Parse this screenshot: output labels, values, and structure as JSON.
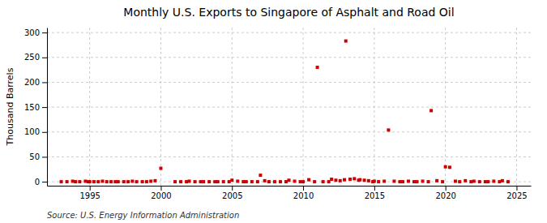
{
  "chart_data": {
    "type": "scatter",
    "title": "Monthly U.S. Exports to Singapore of Asphalt and Road Oil",
    "y_label": "Thousand Barrels",
    "annotations": [
      "Source: U.S. Energy Information Administration"
    ],
    "color": "#cc0000",
    "marker": "square",
    "grid": true,
    "xlim": [
      1992,
      2026
    ],
    "ylim": [
      -8,
      310
    ],
    "xticks": [
      1995,
      2000,
      2005,
      2010,
      2015,
      2020,
      2025
    ],
    "yticks": [
      0,
      50,
      100,
      150,
      200,
      250,
      300
    ],
    "x": [
      1993.0,
      1993.4,
      1993.8,
      1994.0,
      1994.3,
      1994.7,
      1994.9,
      1995.0,
      1995.3,
      1995.6,
      1995.9,
      1996.2,
      1996.5,
      1996.8,
      1997.0,
      1997.4,
      1997.7,
      1998.0,
      1998.3,
      1998.7,
      1999.0,
      1999.3,
      1999.6,
      2000.0,
      2001.0,
      2001.4,
      2001.8,
      2002.0,
      2002.4,
      2002.8,
      2003.0,
      2003.4,
      2003.8,
      2004.0,
      2004.4,
      2004.8,
      2005.0,
      2005.4,
      2005.8,
      2006.0,
      2006.4,
      2006.8,
      2007.0,
      2007.3,
      2007.6,
      2008.0,
      2008.4,
      2008.8,
      2009.0,
      2009.4,
      2009.8,
      2010.0,
      2010.4,
      2010.8,
      2011.0,
      2011.4,
      2011.8,
      2012.0,
      2012.3,
      2012.6,
      2012.9,
      2013.0,
      2013.3,
      2013.6,
      2013.9,
      2014.0,
      2014.3,
      2014.6,
      2014.9,
      2015.0,
      2015.3,
      2015.7,
      2016.0,
      2016.4,
      2016.8,
      2017.0,
      2017.4,
      2017.8,
      2018.0,
      2018.4,
      2018.8,
      2019.0,
      2019.4,
      2019.8,
      2020.0,
      2020.3,
      2020.7,
      2021.0,
      2021.4,
      2021.8,
      2022.0,
      2022.4,
      2022.8,
      2023.0,
      2023.4,
      2023.8,
      2024.0,
      2024.4
    ],
    "values": [
      0,
      0,
      1,
      0,
      0,
      1,
      0,
      0,
      0,
      0,
      1,
      0,
      0,
      0,
      0,
      0,
      0,
      1,
      0,
      0,
      0,
      1,
      2,
      27,
      0,
      0,
      0,
      1,
      0,
      0,
      0,
      0,
      0,
      0,
      0,
      0,
      3,
      1,
      0,
      0,
      0,
      0,
      13,
      2,
      0,
      0,
      0,
      0,
      3,
      1,
      0,
      0,
      4,
      0,
      230,
      0,
      0,
      5,
      3,
      2,
      4,
      283,
      5,
      6,
      3,
      4,
      3,
      2,
      0,
      1,
      0,
      1,
      104,
      1,
      0,
      0,
      1,
      0,
      0,
      1,
      0,
      143,
      2,
      0,
      30,
      29,
      1,
      0,
      2,
      0,
      1,
      0,
      0,
      0,
      1,
      0,
      2,
      0
    ]
  }
}
